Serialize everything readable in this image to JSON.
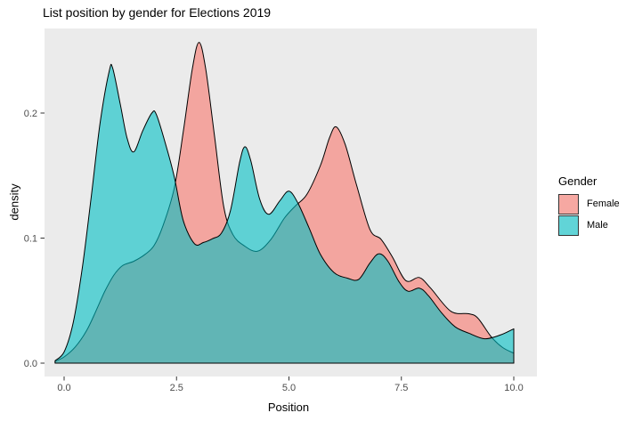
{
  "title": "List position by gender for Elections 2019",
  "panel": {
    "background": "#EBEBEB",
    "tick_color": "#333333",
    "tick_label_color": "#4d4d4d"
  },
  "legend": {
    "title": "Gender",
    "position": "right",
    "entries": [
      {
        "label": "Female",
        "color": "#F8766D"
      },
      {
        "label": "Male",
        "color": "#00BFC4"
      }
    ]
  },
  "chart_data": {
    "type": "area",
    "title": "List position by gender for Elections 2019",
    "xlabel": "Position",
    "ylabel": "density",
    "grid": false,
    "panel_bg": "#EBEBEB",
    "xlim": [
      -0.4356,
      10.5149
    ],
    "ylim": [
      -0.01068,
      0.26762
    ],
    "x_ticks": [
      "0.0",
      "2.5",
      "5.0",
      "7.5",
      "10.0"
    ],
    "x_tick_values": [
      0,
      2.5,
      5,
      7.5,
      10
    ],
    "y_ticks": [
      "0.0",
      "0.1",
      "0.2"
    ],
    "y_tick_values": [
      0,
      0.1,
      0.2
    ],
    "fill_opacity": 0.6,
    "stroke_color": "#000000",
    "series": [
      {
        "name": "Female",
        "color": "#F8766D",
        "points": [
          [
            -0.2,
            0.0015
          ],
          [
            0,
            0.005
          ],
          [
            0.25,
            0.013
          ],
          [
            0.5,
            0.026
          ],
          [
            0.7,
            0.041
          ],
          [
            0.9,
            0.057
          ],
          [
            1.1,
            0.07
          ],
          [
            1.3,
            0.078
          ],
          [
            1.55,
            0.0815
          ],
          [
            1.8,
            0.087
          ],
          [
            2.0,
            0.094
          ],
          [
            2.2,
            0.11
          ],
          [
            2.45,
            0.14
          ],
          [
            2.65,
            0.185
          ],
          [
            2.85,
            0.235
          ],
          [
            3.0,
            0.2565
          ],
          [
            3.15,
            0.235
          ],
          [
            3.35,
            0.18
          ],
          [
            3.55,
            0.125
          ],
          [
            3.75,
            0.103
          ],
          [
            4.0,
            0.094
          ],
          [
            4.3,
            0.0895
          ],
          [
            4.6,
            0.099
          ],
          [
            4.9,
            0.116
          ],
          [
            5.15,
            0.126
          ],
          [
            5.4,
            0.135
          ],
          [
            5.7,
            0.158
          ],
          [
            5.9,
            0.18
          ],
          [
            6.05,
            0.189
          ],
          [
            6.25,
            0.175
          ],
          [
            6.5,
            0.143
          ],
          [
            6.8,
            0.107
          ],
          [
            7.05,
            0.099
          ],
          [
            7.3,
            0.085
          ],
          [
            7.6,
            0.066
          ],
          [
            7.9,
            0.0685
          ],
          [
            8.15,
            0.06
          ],
          [
            8.6,
            0.0415
          ],
          [
            9.0,
            0.0395
          ],
          [
            9.2,
            0.036
          ],
          [
            9.5,
            0.021
          ],
          [
            9.75,
            0.0125
          ],
          [
            10,
            0.008
          ]
        ]
      },
      {
        "name": "Male",
        "color": "#00BFC4",
        "points": [
          [
            -0.2,
            0.002
          ],
          [
            0,
            0.009
          ],
          [
            0.2,
            0.032
          ],
          [
            0.4,
            0.075
          ],
          [
            0.6,
            0.132
          ],
          [
            0.8,
            0.192
          ],
          [
            1.0,
            0.233
          ],
          [
            1.08,
            0.236
          ],
          [
            1.25,
            0.207
          ],
          [
            1.4,
            0.18
          ],
          [
            1.55,
            0.169
          ],
          [
            1.75,
            0.186
          ],
          [
            1.95,
            0.2
          ],
          [
            2.05,
            0.199
          ],
          [
            2.25,
            0.176
          ],
          [
            2.45,
            0.149
          ],
          [
            2.65,
            0.114
          ],
          [
            2.9,
            0.0955
          ],
          [
            3.1,
            0.0965
          ],
          [
            3.3,
            0.0995
          ],
          [
            3.5,
            0.104
          ],
          [
            3.7,
            0.122
          ],
          [
            3.9,
            0.16
          ],
          [
            4.02,
            0.173
          ],
          [
            4.15,
            0.162
          ],
          [
            4.35,
            0.131
          ],
          [
            4.55,
            0.119
          ],
          [
            4.8,
            0.13
          ],
          [
            5.0,
            0.1375
          ],
          [
            5.2,
            0.128
          ],
          [
            5.45,
            0.108
          ],
          [
            5.7,
            0.087
          ],
          [
            6.0,
            0.0725
          ],
          [
            6.3,
            0.068
          ],
          [
            6.55,
            0.067
          ],
          [
            6.8,
            0.08
          ],
          [
            7.0,
            0.0875
          ],
          [
            7.2,
            0.0815
          ],
          [
            7.45,
            0.065
          ],
          [
            7.65,
            0.0575
          ],
          [
            7.9,
            0.06
          ],
          [
            8.1,
            0.054
          ],
          [
            8.4,
            0.04
          ],
          [
            8.7,
            0.029
          ],
          [
            9.0,
            0.024
          ],
          [
            9.35,
            0.0195
          ],
          [
            9.7,
            0.0225
          ],
          [
            10,
            0.0275
          ]
        ]
      }
    ]
  }
}
